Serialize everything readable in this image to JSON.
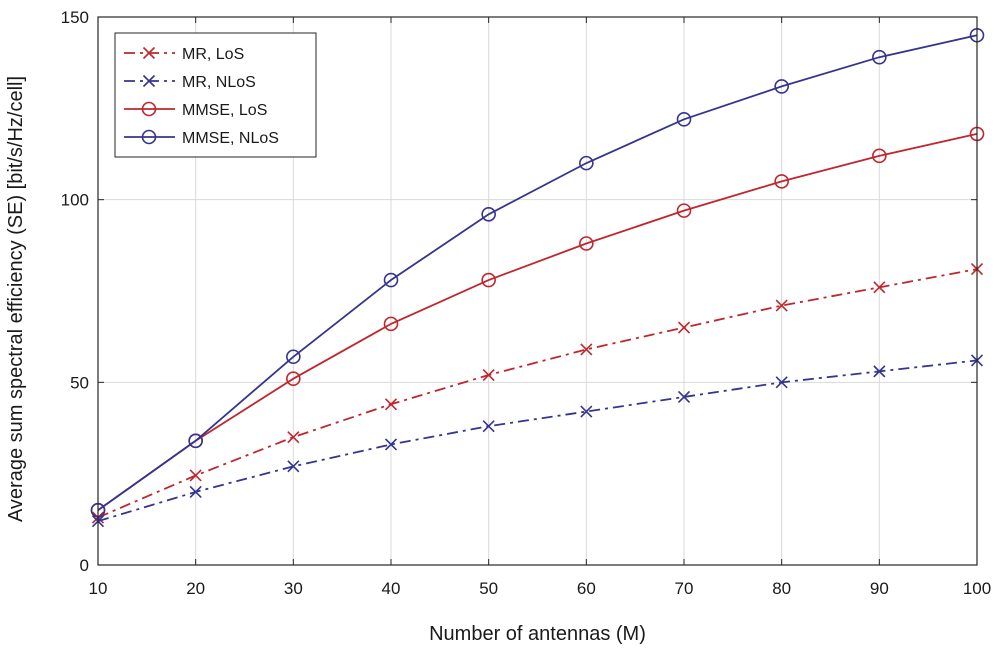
{
  "chart_data": {
    "type": "line",
    "title": "",
    "xlabel": "Number of antennas (M)",
    "ylabel": "Average sum spectral efficiency (SE) [bit/s/Hz/cell]",
    "xlim": [
      10,
      100
    ],
    "ylim": [
      0,
      150
    ],
    "x": [
      10,
      20,
      30,
      40,
      50,
      60,
      70,
      80,
      90,
      100
    ],
    "x_ticks": [
      "10",
      "20",
      "30",
      "40",
      "50",
      "60",
      "70",
      "80",
      "90",
      "100"
    ],
    "y_ticks": [
      "0",
      "50",
      "100",
      "150"
    ],
    "grid": true,
    "legend_position": "top-left",
    "series": [
      {
        "name": "MR, LoS",
        "values": [
          13,
          24.5,
          35,
          44,
          52,
          59,
          65,
          71,
          76,
          81
        ],
        "color": "#c0262d",
        "line": "dashdot",
        "marker": "x"
      },
      {
        "name": "MR, NLoS",
        "values": [
          12,
          20,
          27,
          33,
          38,
          42,
          46,
          50,
          53,
          56
        ],
        "color": "#35348f",
        "line": "dashdot",
        "marker": "x"
      },
      {
        "name": "MMSE, LoS",
        "values": [
          15,
          34,
          51,
          66,
          78,
          88,
          97,
          105,
          112,
          118
        ],
        "color": "#c0262d",
        "line": "solid",
        "marker": "o"
      },
      {
        "name": "MMSE, NLoS",
        "values": [
          15,
          34,
          57,
          78,
          96,
          110,
          122,
          131,
          139,
          145
        ],
        "color": "#35348f",
        "line": "solid",
        "marker": "o"
      }
    ]
  }
}
